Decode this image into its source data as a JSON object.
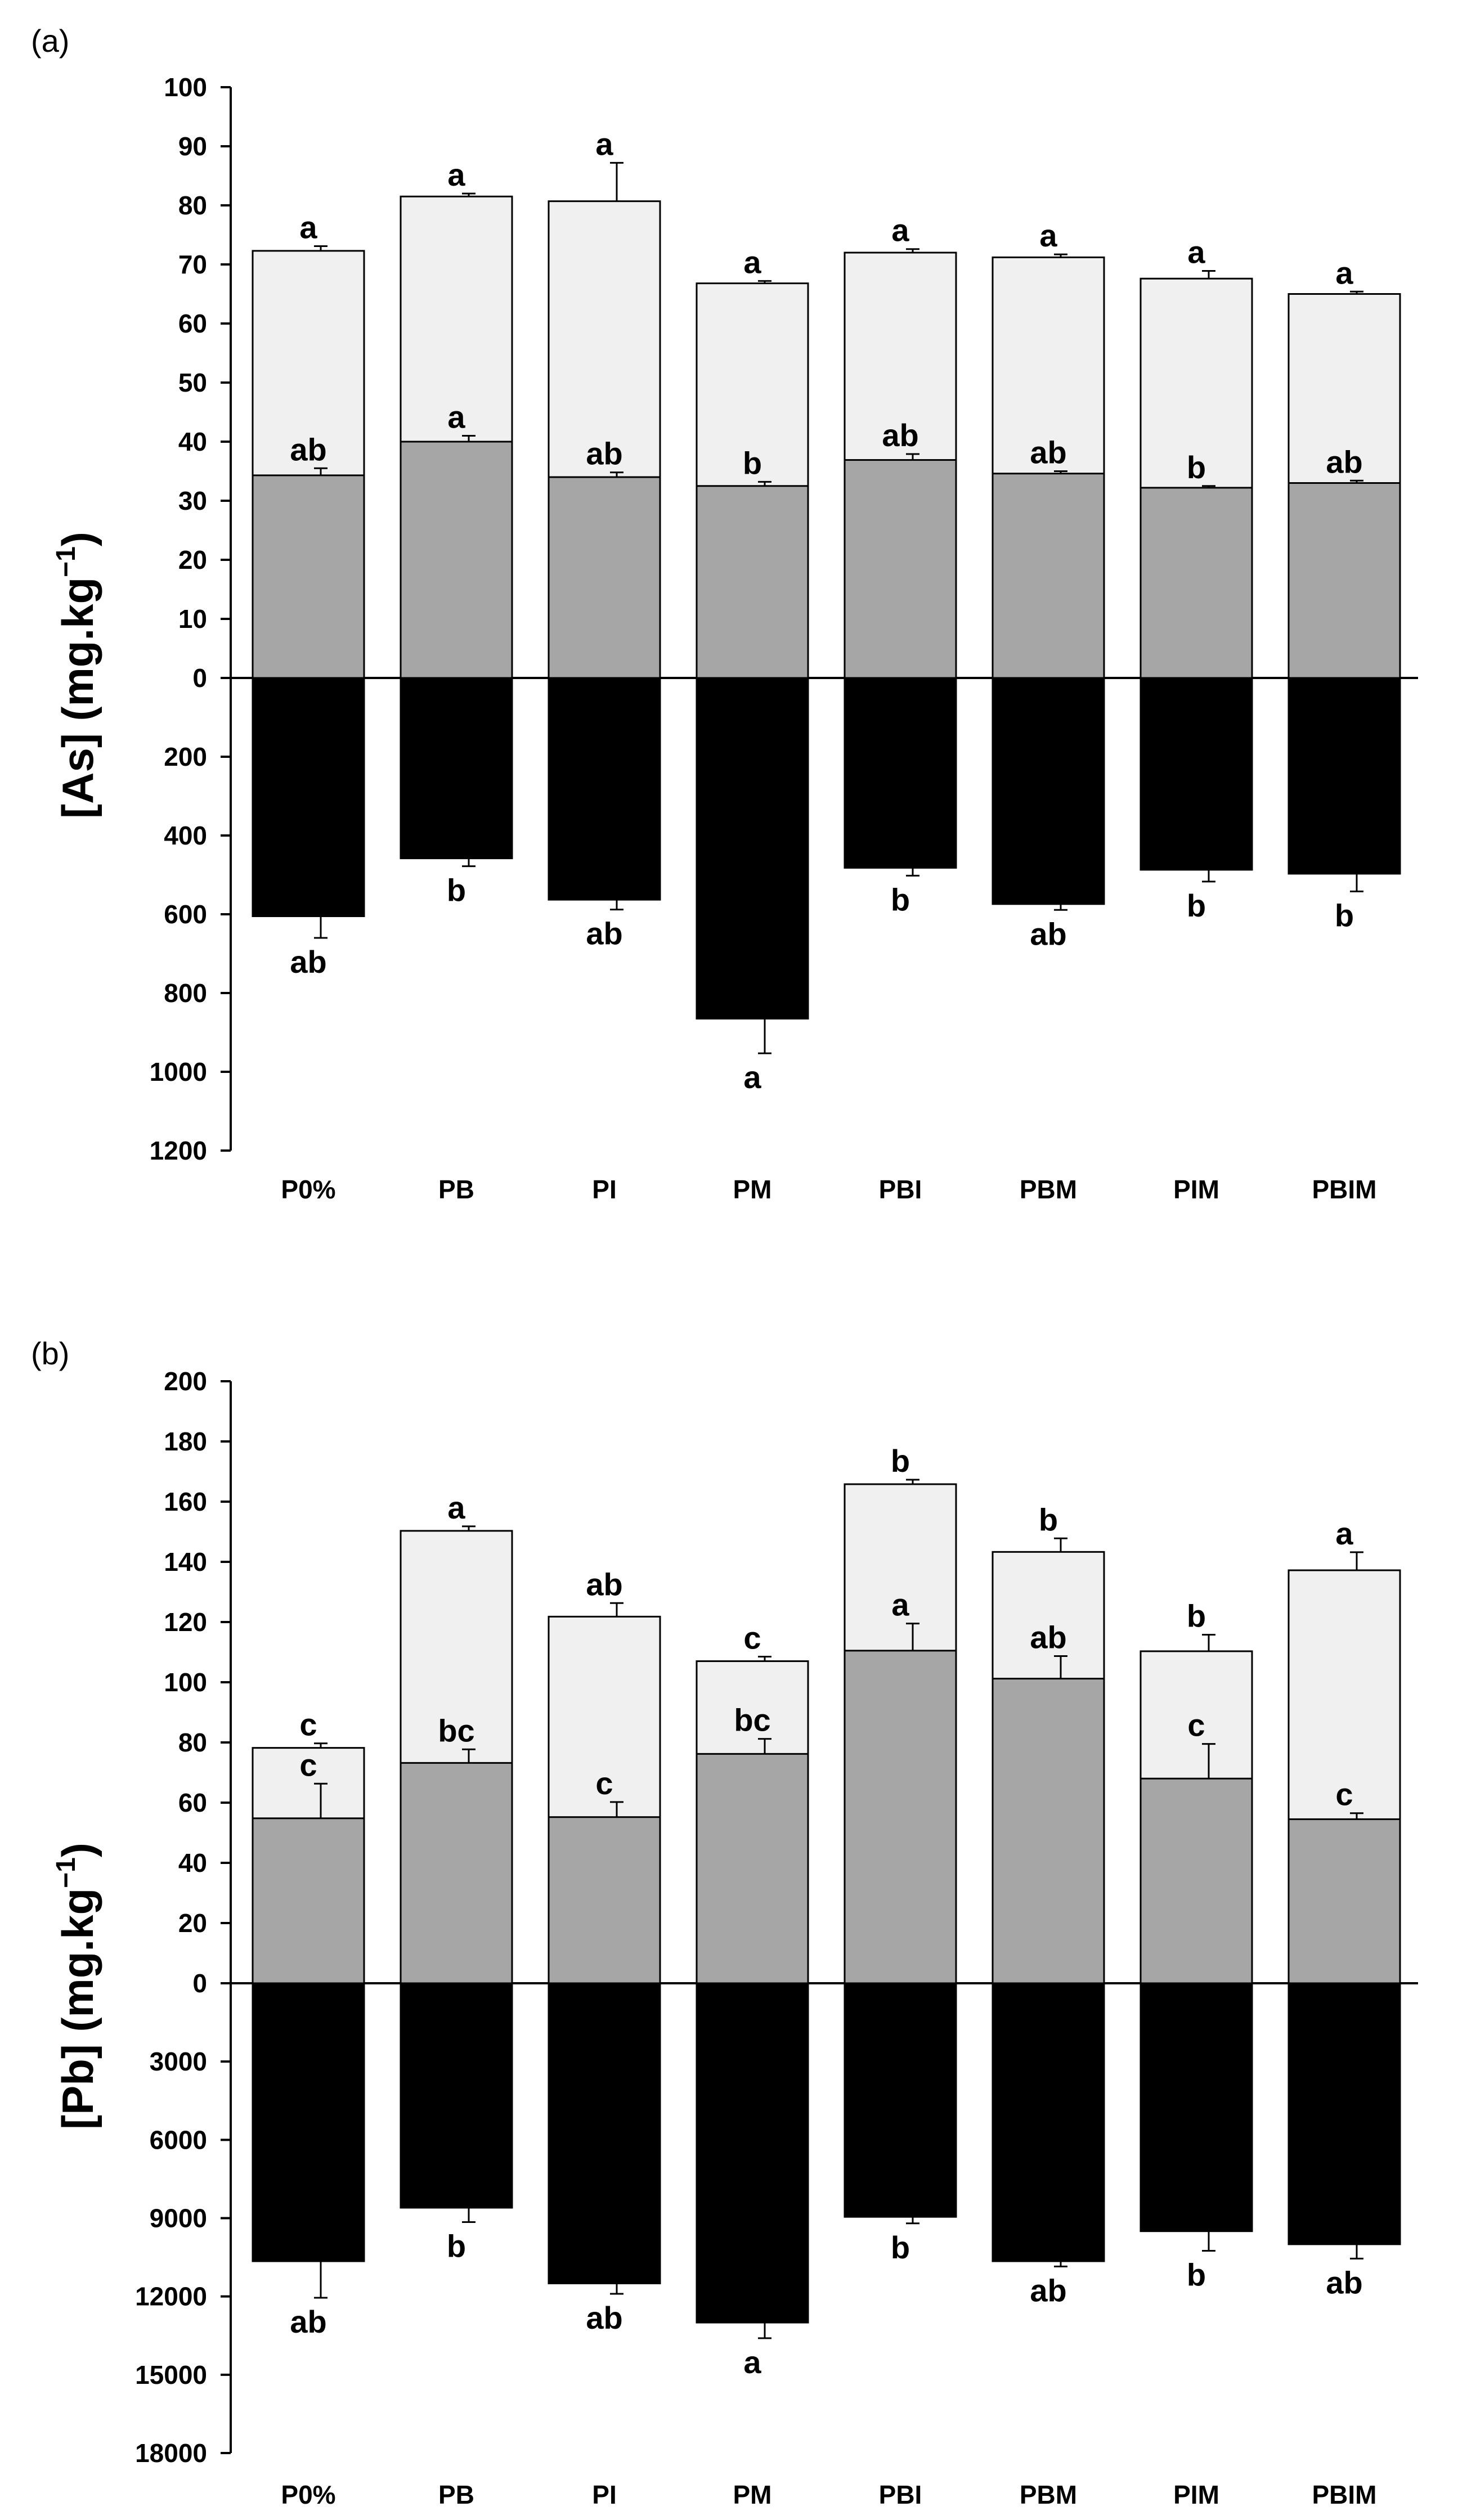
{
  "chart_data": [
    {
      "type": "bar",
      "panel_label": "(a)",
      "ylabel": "[As] (mg.kg",
      "ylabel_sup": "−1",
      "ylabel_close": ")",
      "categories": [
        "P0%",
        "PB",
        "PI",
        "PM",
        "PBI",
        "PBM",
        "PIM",
        "PBIM"
      ],
      "upper_axis": {
        "ylim": [
          0,
          100
        ],
        "ticks": [
          "100",
          "90",
          "80",
          "70",
          "60",
          "50",
          "40",
          "30",
          "20",
          "10",
          "0"
        ]
      },
      "lower_axis": {
        "ylim": [
          0,
          1200
        ],
        "ticks": [
          "200",
          "400",
          "600",
          "800",
          "1000",
          "1200"
        ]
      },
      "series": [
        {
          "name": "upper_light",
          "fill": "#f0f0f0",
          "values": [
            72.3,
            81.5,
            80.7,
            66.8,
            72.0,
            71.2,
            67.6,
            65.0
          ],
          "errors": [
            0.8,
            0.5,
            6.5,
            0.4,
            0.6,
            0.5,
            1.3,
            0.4
          ],
          "letters": [
            "a",
            "a",
            "a",
            "a",
            "a",
            "a",
            "a",
            "a"
          ]
        },
        {
          "name": "upper_grey",
          "fill": "#a6a6a6",
          "values": [
            34.3,
            40.0,
            34.0,
            32.5,
            36.9,
            34.6,
            32.2,
            33.0
          ],
          "errors": [
            1.2,
            1.0,
            0.8,
            0.7,
            1.0,
            0.4,
            0.3,
            0.4
          ],
          "letters": [
            "ab",
            "a",
            "ab",
            "b",
            "ab",
            "ab",
            "b",
            "ab"
          ]
        },
        {
          "name": "lower_black",
          "fill": "#000000",
          "values": [
            605,
            458,
            563,
            865,
            482,
            574,
            487,
            497
          ],
          "errors": [
            55,
            20,
            25,
            88,
            20,
            15,
            30,
            45
          ],
          "letters": [
            "ab",
            "b",
            "ab",
            "a",
            "b",
            "ab",
            "b",
            "b"
          ]
        }
      ]
    },
    {
      "type": "bar",
      "panel_label": "(b)",
      "ylabel": "[Pb] (mg.kg",
      "ylabel_sup": "−1",
      "ylabel_close": ")",
      "categories": [
        "P0%",
        "PB",
        "PI",
        "PM",
        "PBI",
        "PBM",
        "PIM",
        "PBIM"
      ],
      "upper_axis": {
        "ylim": [
          0,
          200
        ],
        "ticks": [
          "200",
          "180",
          "160",
          "140",
          "120",
          "100",
          "80",
          "60",
          "40",
          "20",
          "0"
        ]
      },
      "lower_axis": {
        "ylim": [
          0,
          18000
        ],
        "ticks": [
          "3000",
          "6000",
          "9000",
          "12000",
          "15000",
          "18000"
        ]
      },
      "series": [
        {
          "name": "upper_light",
          "fill": "#f0f0f0",
          "values": [
            78.2,
            150.3,
            121.8,
            107.0,
            165.8,
            143.3,
            110.3,
            137.2
          ],
          "errors": [
            1.5,
            1.5,
            4.5,
            1.5,
            1.5,
            4.5,
            5.5,
            6.0
          ],
          "letters": [
            "c",
            "a",
            "ab",
            "c",
            "b",
            "b",
            "b",
            "a"
          ]
        },
        {
          "name": "upper_grey",
          "fill": "#a6a6a6",
          "values": [
            54.8,
            73.2,
            55.2,
            76.2,
            110.5,
            101.2,
            68.0,
            54.5
          ],
          "errors": [
            11.5,
            4.5,
            5.0,
            5.0,
            9.0,
            7.5,
            11.5,
            2.0
          ],
          "letters": [
            "c",
            "bc",
            "c",
            "bc",
            "a",
            "ab",
            "c",
            "c"
          ]
        },
        {
          "name": "lower_black",
          "fill": "#000000",
          "values": [
            10650,
            8600,
            11500,
            13000,
            8950,
            10650,
            9500,
            10000
          ],
          "errors": [
            1400,
            550,
            400,
            600,
            250,
            200,
            750,
            550
          ],
          "letters": [
            "ab",
            "b",
            "ab",
            "a",
            "b",
            "ab",
            "b",
            "ab"
          ]
        }
      ]
    }
  ]
}
